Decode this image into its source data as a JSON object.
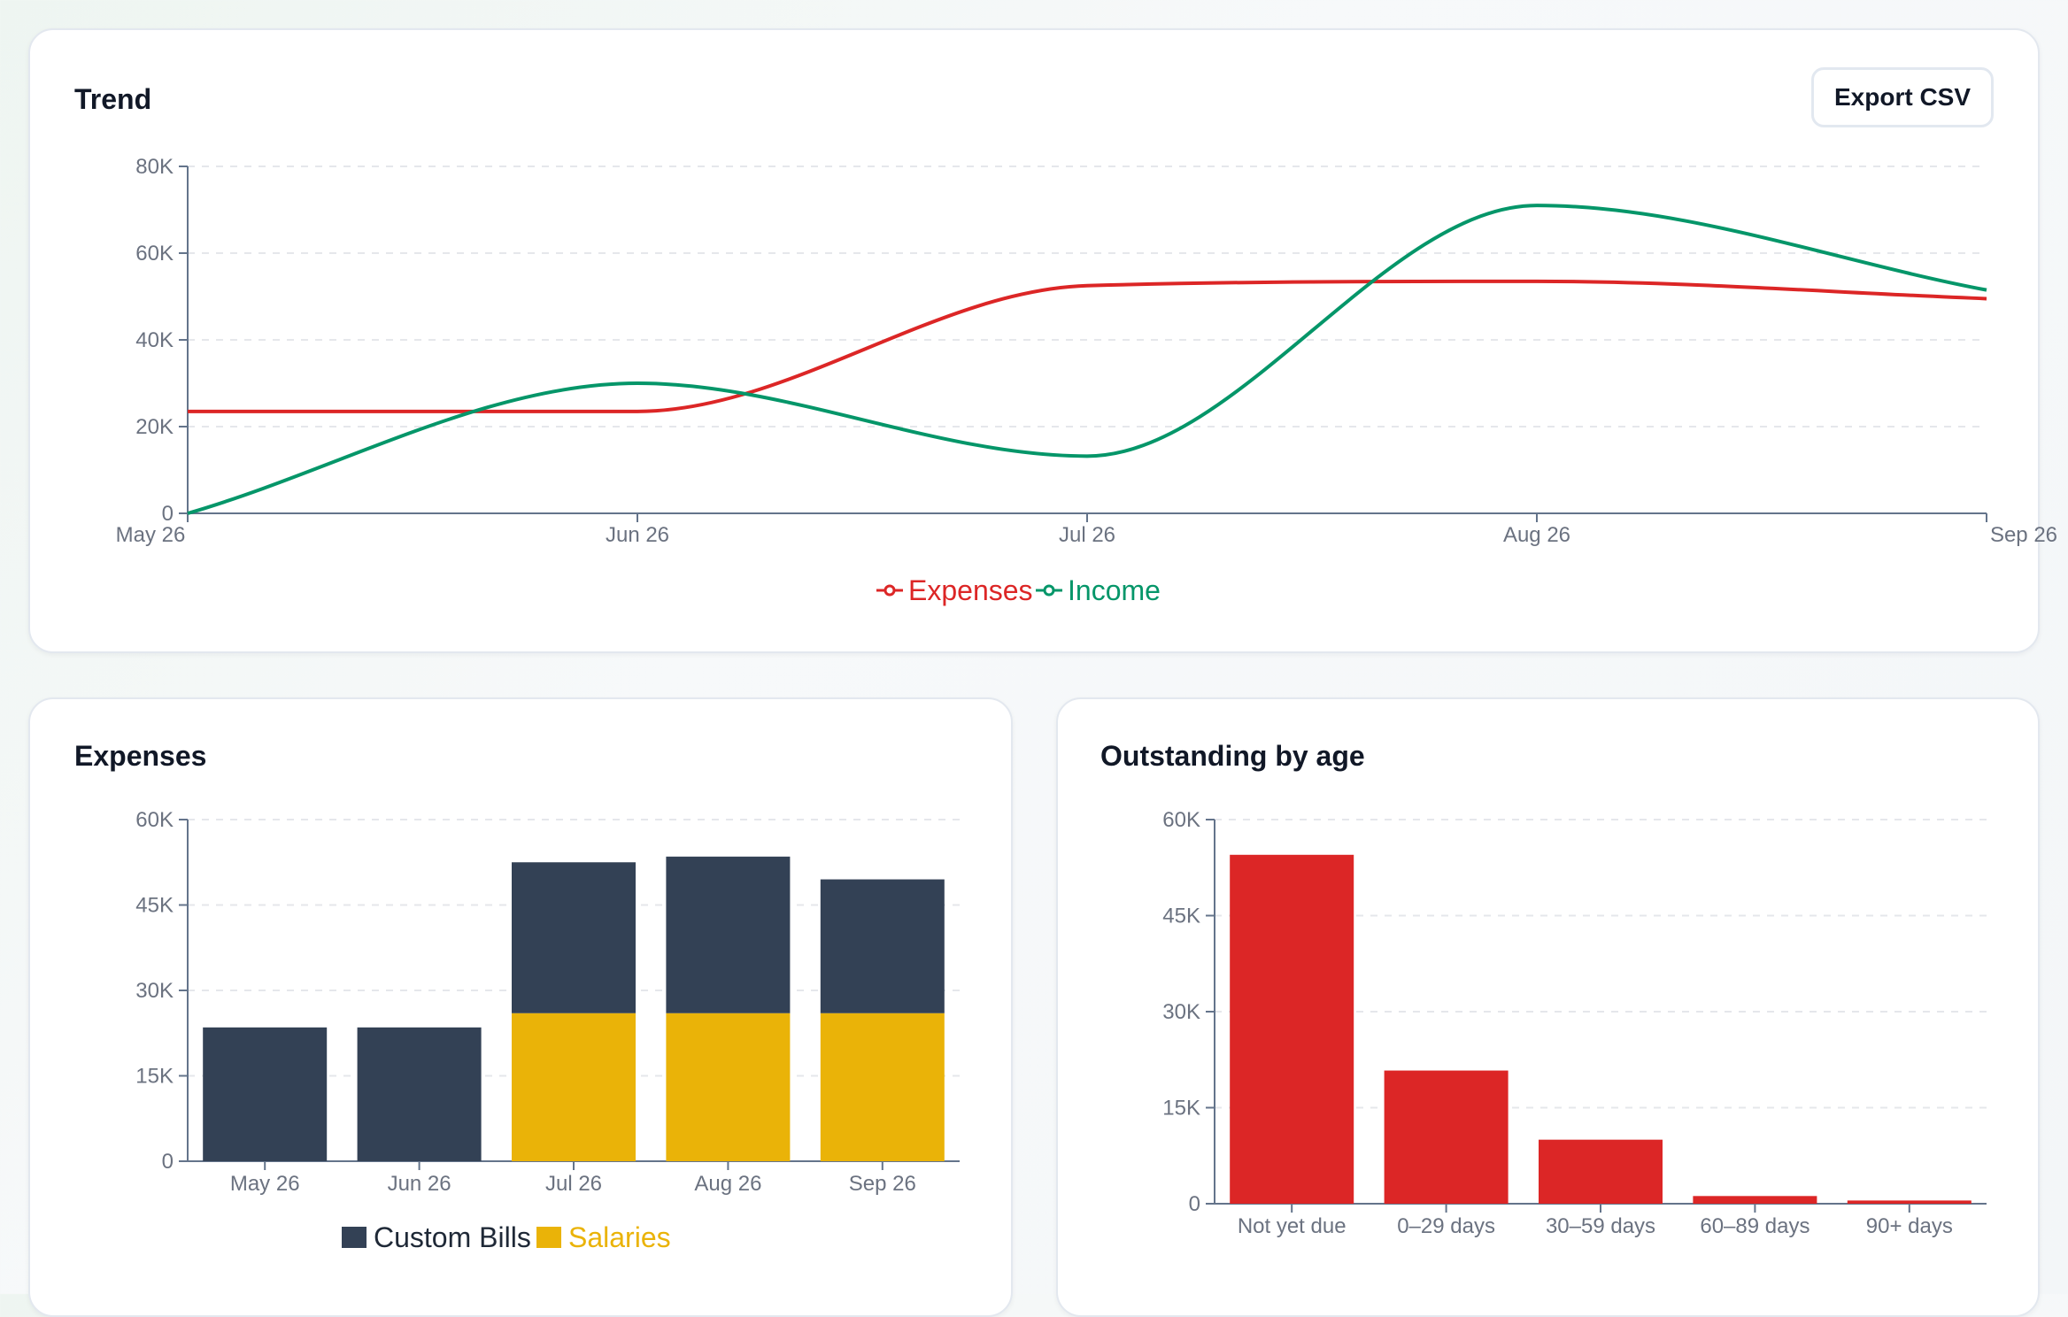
{
  "trend": {
    "title": "Trend",
    "export_label": "Export CSV"
  },
  "expenses_panel": {
    "title": "Expenses"
  },
  "aging_panel": {
    "title": "Outstanding by age"
  },
  "colors": {
    "expenses": "#dc2626",
    "income": "#059669",
    "custom_bills": "#334155",
    "salaries": "#eab308",
    "aging_bar": "#dc2626",
    "axis": "#64748b",
    "grid": "#e5e7eb"
  },
  "chart_data": [
    {
      "id": "trend",
      "type": "line",
      "categories": [
        "May 26",
        "Jun 26",
        "Jul 26",
        "Aug 26",
        "Sep 26"
      ],
      "series": [
        {
          "name": "Expenses",
          "values": [
            23500,
            23500,
            52500,
            53500,
            49500
          ]
        },
        {
          "name": "Income",
          "values": [
            0,
            30000,
            13200,
            71000,
            51500
          ]
        }
      ],
      "yticks": [
        "0",
        "20K",
        "40K",
        "60K",
        "80K"
      ],
      "ylim": [
        0,
        80000
      ],
      "grid": true,
      "legend": "bottom-center"
    },
    {
      "id": "expenses",
      "type": "bar",
      "stacked": true,
      "categories": [
        "May 26",
        "Jun 26",
        "Jul 26",
        "Aug 26",
        "Sep 26"
      ],
      "series": [
        {
          "name": "Salaries",
          "values": [
            0,
            0,
            26000,
            26000,
            26000
          ]
        },
        {
          "name": "Custom Bills",
          "values": [
            23500,
            23500,
            26500,
            27500,
            23500
          ]
        }
      ],
      "legend_order": [
        "Custom Bills",
        "Salaries"
      ],
      "yticks": [
        "0",
        "15K",
        "30K",
        "45K",
        "60K"
      ],
      "ylim": [
        0,
        60000
      ],
      "grid": true,
      "legend": "bottom-center"
    },
    {
      "id": "aging",
      "type": "bar",
      "categories": [
        "Not yet due",
        "0–29 days",
        "30–59 days",
        "60–89 days",
        "90+ days"
      ],
      "values": [
        54500,
        20800,
        10000,
        1200,
        500
      ],
      "yticks": [
        "0",
        "15K",
        "30K",
        "45K",
        "60K"
      ],
      "ylim": [
        0,
        60000
      ],
      "grid": true
    }
  ]
}
